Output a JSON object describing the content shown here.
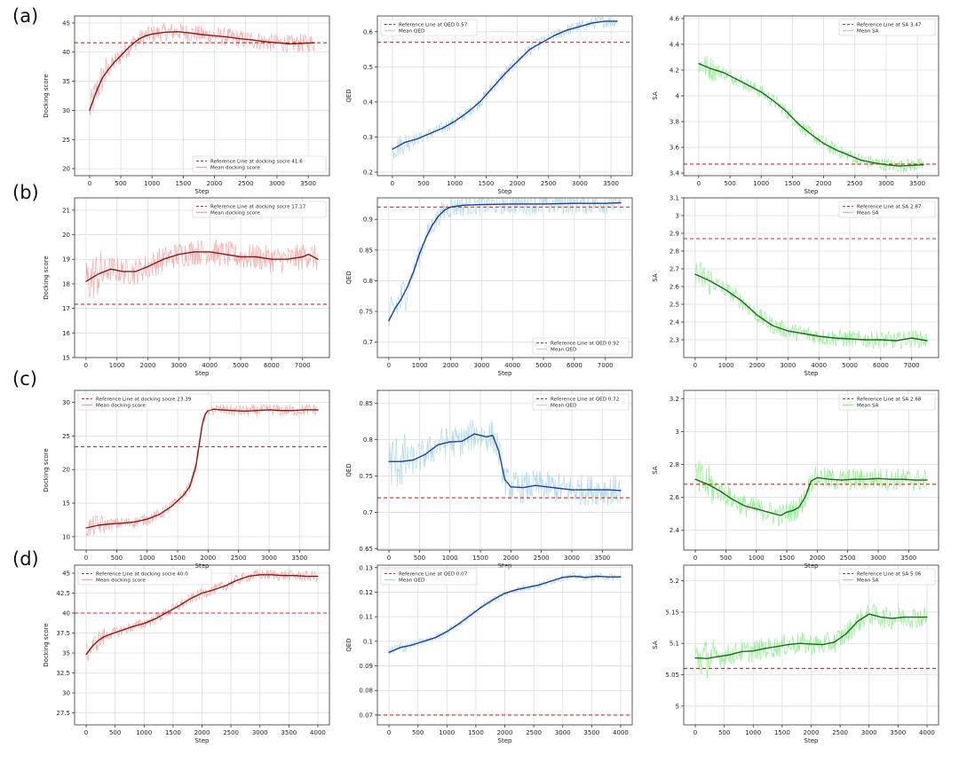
{
  "row_labels": [
    "(a)",
    "(b)",
    "(c)",
    "(d)"
  ],
  "colors": {
    "docking_raw": "#f4a8a8",
    "docking_mean": "#8b1a1a",
    "qed_raw": "#add8e6",
    "qed_mean": "#1f3fa0",
    "sa_raw": "#90ee90",
    "sa_mean": "#1e6b1e",
    "reference": "#e8211b",
    "grid": "#dcdcdc",
    "axes": "#333333"
  },
  "chart_data": [
    {
      "type": "line",
      "row": "(a)",
      "metric": "docking",
      "xlabel": "Step",
      "ylabel": "Docking score",
      "xlim": [
        -240,
        3840
      ],
      "ylim": [
        18.8,
        46.2
      ],
      "xticks": [
        0,
        500,
        1000,
        1500,
        2000,
        2500,
        3000,
        3500
      ],
      "yticks": [
        20,
        25,
        30,
        35,
        40,
        45
      ],
      "reference": {
        "value": 41.6,
        "label": "Reference Line at docking socre 41.6"
      },
      "legend": "bottom-right",
      "legend_mean": "Mean docking score",
      "x_end": 3600,
      "noise": 1.6,
      "series": [
        {
          "name": "Mean docking score",
          "x": [
            0,
            100,
            200,
            300,
            400,
            500,
            600,
            700,
            800,
            900,
            1000,
            1200,
            1400,
            1600,
            1800,
            2000,
            2200,
            2400,
            2600,
            2800,
            3000,
            3200,
            3400,
            3600
          ],
          "y": [
            30,
            33,
            35.5,
            37,
            38.3,
            39.4,
            40.5,
            41.5,
            42.3,
            42.8,
            43.1,
            43.4,
            43.5,
            43.3,
            43,
            42.8,
            42.6,
            42.3,
            42.1,
            41.8,
            41.6,
            41.4,
            41.5,
            41.6
          ]
        }
      ]
    },
    {
      "type": "line",
      "row": "(a)",
      "metric": "qed",
      "xlabel": "Step",
      "ylabel": "QED",
      "xlim": [
        -240,
        3840
      ],
      "ylim": [
        0.19,
        0.645
      ],
      "xticks": [
        0,
        500,
        1000,
        1500,
        2000,
        2500,
        3000,
        3500
      ],
      "yticks": [
        0.2,
        0.3,
        0.4,
        0.5,
        0.6
      ],
      "reference": {
        "value": 0.57,
        "label": "Reference Line at QED  0.57"
      },
      "legend": "top-left",
      "legend_mean": "Mean QED",
      "x_end": 3600,
      "noise": 0.018,
      "series": [
        {
          "name": "Mean QED",
          "x": [
            0,
            200,
            400,
            600,
            800,
            1000,
            1200,
            1400,
            1600,
            1800,
            2000,
            2200,
            2400,
            2600,
            2800,
            3000,
            3200,
            3400,
            3600
          ],
          "y": [
            0.265,
            0.285,
            0.295,
            0.31,
            0.325,
            0.345,
            0.37,
            0.4,
            0.44,
            0.48,
            0.515,
            0.55,
            0.57,
            0.59,
            0.605,
            0.615,
            0.625,
            0.63,
            0.63
          ]
        }
      ]
    },
    {
      "type": "line",
      "row": "(a)",
      "metric": "sa",
      "xlabel": "Step",
      "ylabel": "SA",
      "xlim": [
        -240,
        3840
      ],
      "ylim": [
        3.38,
        4.62
      ],
      "xticks": [
        0,
        500,
        1000,
        1500,
        2000,
        2500,
        3000,
        3500
      ],
      "yticks": [
        3.4,
        3.6,
        3.8,
        4.0,
        4.2,
        4.4,
        4.6
      ],
      "reference": {
        "value": 3.47,
        "label": "Reference Line at SA  3.47"
      },
      "legend": "top-right",
      "legend_mean": "Mean SA",
      "x_end": 3600,
      "noise": 0.055,
      "series": [
        {
          "name": "Mean SA",
          "x": [
            0,
            200,
            400,
            600,
            800,
            1000,
            1200,
            1400,
            1600,
            1800,
            2000,
            2200,
            2400,
            2600,
            2800,
            3000,
            3200,
            3400,
            3600
          ],
          "y": [
            4.25,
            4.21,
            4.18,
            4.13,
            4.08,
            4.03,
            3.96,
            3.88,
            3.78,
            3.7,
            3.63,
            3.58,
            3.54,
            3.5,
            3.48,
            3.465,
            3.455,
            3.46,
            3.465
          ]
        }
      ]
    },
    {
      "type": "line",
      "row": "(b)",
      "metric": "docking",
      "xlabel": "Step",
      "ylabel": "Docking score",
      "xlim": [
        -370,
        7870
      ],
      "ylim": [
        15,
        21.5
      ],
      "xticks": [
        0,
        1000,
        2000,
        3000,
        4000,
        5000,
        6000,
        7000
      ],
      "yticks": [
        15,
        16,
        17,
        18,
        19,
        20,
        21
      ],
      "reference": {
        "value": 17.17,
        "label": "Reference Line at docking socre 17.17"
      },
      "legend": "top-right",
      "legend_mean": "Mean docking score",
      "x_end": 7500,
      "noise": 0.55,
      "series": [
        {
          "name": "Mean docking score",
          "x": [
            0,
            400,
            800,
            1200,
            1600,
            2000,
            2500,
            3000,
            3500,
            4000,
            4500,
            5000,
            5500,
            6000,
            6500,
            7000,
            7200,
            7500
          ],
          "y": [
            18.1,
            18.4,
            18.6,
            18.5,
            18.5,
            18.7,
            19.0,
            19.2,
            19.3,
            19.3,
            19.2,
            19.1,
            19.1,
            19.0,
            19.0,
            19.1,
            19.2,
            19.0
          ]
        }
      ]
    },
    {
      "type": "line",
      "row": "(b)",
      "metric": "qed",
      "xlabel": "Step",
      "ylabel": "QED",
      "xlim": [
        -370,
        7870
      ],
      "ylim": [
        0.675,
        0.935
      ],
      "xticks": [
        0,
        1000,
        2000,
        3000,
        4000,
        5000,
        6000,
        7000
      ],
      "yticks": [
        0.7,
        0.75,
        0.8,
        0.85,
        0.9
      ],
      "reference": {
        "value": 0.92,
        "label": "Reference Line at QED  0.92"
      },
      "legend": "bottom-right",
      "legend_mean": "Mean QED",
      "x_end": 7500,
      "noise": 0.018,
      "series": [
        {
          "name": "Mean QED",
          "x": [
            0,
            200,
            400,
            600,
            800,
            1000,
            1200,
            1400,
            1600,
            1800,
            2000,
            2400,
            3000,
            4000,
            5000,
            6000,
            7000,
            7500
          ],
          "y": [
            0.735,
            0.755,
            0.77,
            0.79,
            0.815,
            0.845,
            0.87,
            0.89,
            0.905,
            0.915,
            0.92,
            0.923,
            0.924,
            0.925,
            0.925,
            0.926,
            0.926,
            0.927
          ]
        }
      ]
    },
    {
      "type": "line",
      "row": "(b)",
      "metric": "sa",
      "xlabel": "Step",
      "ylabel": "SA",
      "xlim": [
        -370,
        7870
      ],
      "ylim": [
        2.2,
        3.1
      ],
      "xticks": [
        0,
        1000,
        2000,
        3000,
        4000,
        5000,
        6000,
        7000
      ],
      "yticks": [
        2.3,
        2.4,
        2.5,
        2.6,
        2.7,
        2.8,
        2.9,
        3.0,
        3.1
      ],
      "reference": {
        "value": 2.87,
        "label": "Reference Line at SA  2.87"
      },
      "legend": "top-right",
      "legend_mean": "Mean SA",
      "x_end": 7500,
      "noise": 0.05,
      "series": [
        {
          "name": "Mean SA",
          "x": [
            0,
            500,
            1000,
            1500,
            2000,
            2500,
            3000,
            3500,
            4000,
            4500,
            5000,
            5500,
            6000,
            6500,
            7000,
            7500
          ],
          "y": [
            2.67,
            2.63,
            2.58,
            2.52,
            2.44,
            2.38,
            2.35,
            2.335,
            2.32,
            2.31,
            2.305,
            2.3,
            2.3,
            2.295,
            2.31,
            2.295
          ]
        }
      ]
    },
    {
      "type": "line",
      "row": "(c)",
      "metric": "docking",
      "xlabel": "Step",
      "ylabel": "Docking score",
      "xlim": [
        -190,
        3990
      ],
      "ylim": [
        8,
        31.8
      ],
      "xticks": [
        0,
        500,
        1000,
        1500,
        2000,
        2500,
        3000,
        3500
      ],
      "yticks": [
        10,
        15,
        20,
        25,
        30
      ],
      "reference": {
        "value": 23.39,
        "label": "Reference Line at docking socre 23.39"
      },
      "legend": "top-left",
      "legend_mean": "Mean docking score",
      "x_end": 3800,
      "noise": 0.9,
      "series": [
        {
          "name": "Mean docking score",
          "x": [
            0,
            200,
            400,
            600,
            800,
            1000,
            1200,
            1400,
            1600,
            1700,
            1800,
            1850,
            1900,
            1950,
            2000,
            2100,
            2200,
            2400,
            2600,
            2800,
            3000,
            3200,
            3400,
            3600,
            3800
          ],
          "y": [
            11.3,
            11.7,
            11.9,
            12.0,
            12.2,
            12.6,
            13.3,
            14.5,
            16.2,
            17.5,
            20.5,
            23.5,
            26.5,
            28.2,
            28.8,
            29.0,
            28.9,
            28.8,
            28.7,
            28.8,
            28.9,
            28.8,
            28.8,
            28.9,
            28.9
          ]
        }
      ]
    },
    {
      "type": "line",
      "row": "(c)",
      "metric": "qed",
      "xlabel": "Step",
      "ylabel": "QED",
      "xlim": [
        -190,
        3990
      ],
      "ylim": [
        0.648,
        0.868
      ],
      "xticks": [
        0,
        500,
        1000,
        1500,
        2000,
        2500,
        3000,
        3500
      ],
      "yticks": [
        0.65,
        0.7,
        0.75,
        0.8,
        0.85
      ],
      "reference": {
        "value": 0.72,
        "label": "Reference Line at QED  0.72"
      },
      "legend": "top-right",
      "legend_mean": "Mean QED",
      "x_end": 3800,
      "noise": 0.022,
      "series": [
        {
          "name": "Mean QED",
          "x": [
            0,
            200,
            400,
            600,
            800,
            1000,
            1200,
            1400,
            1500,
            1600,
            1700,
            1800,
            1900,
            2000,
            2200,
            2400,
            2600,
            2800,
            3000,
            3200,
            3400,
            3600,
            3800
          ],
          "y": [
            0.77,
            0.77,
            0.772,
            0.78,
            0.793,
            0.797,
            0.798,
            0.808,
            0.806,
            0.804,
            0.806,
            0.785,
            0.745,
            0.735,
            0.734,
            0.737,
            0.735,
            0.733,
            0.731,
            0.731,
            0.731,
            0.731,
            0.73
          ]
        }
      ]
    },
    {
      "type": "line",
      "row": "(c)",
      "metric": "sa",
      "xlabel": "Step",
      "ylabel": "SA",
      "xlim": [
        -190,
        3990
      ],
      "ylim": [
        2.28,
        3.25
      ],
      "xticks": [
        0,
        500,
        1000,
        1500,
        2000,
        2500,
        3000,
        3500
      ],
      "yticks": [
        2.4,
        2.6,
        2.8,
        3.0,
        3.2
      ],
      "reference": {
        "value": 2.68,
        "label": "Reference Line at SA  2.68"
      },
      "legend": "top-right",
      "legend_mean": "Mean SA",
      "x_end": 3800,
      "noise": 0.07,
      "series": [
        {
          "name": "Mean SA",
          "x": [
            0,
            200,
            400,
            600,
            800,
            1000,
            1200,
            1400,
            1500,
            1600,
            1700,
            1800,
            1900,
            2000,
            2200,
            2400,
            2600,
            2800,
            3000,
            3200,
            3400,
            3600,
            3800
          ],
          "y": [
            2.71,
            2.68,
            2.64,
            2.59,
            2.55,
            2.53,
            2.51,
            2.49,
            2.51,
            2.52,
            2.54,
            2.6,
            2.7,
            2.72,
            2.71,
            2.705,
            2.71,
            2.71,
            2.715,
            2.71,
            2.71,
            2.705,
            2.705
          ]
        }
      ]
    },
    {
      "type": "line",
      "row": "(d)",
      "metric": "docking",
      "xlabel": "Step",
      "ylabel": "Docking score",
      "xlim": [
        -200,
        4200
      ],
      "ylim": [
        26.0,
        46.0
      ],
      "xticks": [
        0,
        500,
        1000,
        1500,
        2000,
        2500,
        3000,
        3500,
        4000
      ],
      "yticks": [
        27.5,
        30.0,
        32.5,
        35.0,
        37.5,
        40.0,
        42.5,
        45.0
      ],
      "reference": {
        "value": 40.0,
        "label": "Reference Line at docking socre 40.0"
      },
      "legend": "top-left",
      "legend_mean": "Mean docking score",
      "x_end": 4000,
      "noise": 0.7,
      "series": [
        {
          "name": "Mean docking score",
          "x": [
            0,
            100,
            200,
            300,
            400,
            600,
            800,
            1000,
            1200,
            1400,
            1600,
            1800,
            2000,
            2200,
            2400,
            2600,
            2800,
            3000,
            3200,
            3400,
            3600,
            3800,
            4000
          ],
          "y": [
            34.8,
            35.8,
            36.5,
            37.0,
            37.3,
            37.8,
            38.3,
            38.7,
            39.3,
            40.1,
            40.9,
            41.8,
            42.5,
            42.9,
            43.4,
            44.1,
            44.6,
            44.8,
            44.8,
            44.7,
            44.7,
            44.6,
            44.6
          ]
        }
      ]
    },
    {
      "type": "line",
      "row": "(d)",
      "metric": "qed",
      "xlabel": "Step",
      "ylabel": "QED",
      "xlim": [
        -200,
        4200
      ],
      "ylim": [
        0.066,
        0.131
      ],
      "xticks": [
        0,
        500,
        1000,
        1500,
        2000,
        2500,
        3000,
        3500,
        4000
      ],
      "yticks": [
        0.07,
        0.08,
        0.09,
        0.1,
        0.11,
        0.12,
        0.13
      ],
      "reference": {
        "value": 0.07,
        "label": "Reference Line at QED  0.07"
      },
      "legend": "top-left",
      "legend_mean": "Mean QED",
      "x_end": 4000,
      "noise": 0.0015,
      "series": [
        {
          "name": "Mean QED",
          "x": [
            0,
            200,
            400,
            600,
            800,
            1000,
            1200,
            1400,
            1600,
            1800,
            2000,
            2200,
            2400,
            2600,
            2800,
            3000,
            3200,
            3400,
            3600,
            3800,
            4000
          ],
          "y": [
            0.0955,
            0.0975,
            0.0985,
            0.1,
            0.1015,
            0.104,
            0.107,
            0.1105,
            0.114,
            0.117,
            0.1195,
            0.121,
            0.122,
            0.123,
            0.1245,
            0.126,
            0.1265,
            0.126,
            0.1265,
            0.1262,
            0.1262
          ]
        }
      ]
    },
    {
      "type": "line",
      "row": "(d)",
      "metric": "sa",
      "xlabel": "Step",
      "ylabel": "SA",
      "xlim": [
        -200,
        4200
      ],
      "ylim": [
        4.97,
        5.225
      ],
      "xticks": [
        0,
        500,
        1000,
        1500,
        2000,
        2500,
        3000,
        3500,
        4000
      ],
      "yticks": [
        5.0,
        5.05,
        5.1,
        5.15,
        5.2
      ],
      "reference": {
        "value": 5.06,
        "label": "Reference Line at SA  5.06"
      },
      "legend": "top-right",
      "legend_mean": "Mean SA",
      "x_end": 4000,
      "noise": 0.018,
      "series": [
        {
          "name": "Mean SA",
          "x": [
            0,
            200,
            400,
            600,
            800,
            1000,
            1200,
            1400,
            1600,
            1800,
            2000,
            2200,
            2400,
            2600,
            2800,
            3000,
            3200,
            3400,
            3600,
            3800,
            4000
          ],
          "y": [
            5.077,
            5.076,
            5.079,
            5.082,
            5.087,
            5.088,
            5.092,
            5.095,
            5.098,
            5.1,
            5.099,
            5.098,
            5.102,
            5.115,
            5.135,
            5.147,
            5.142,
            5.14,
            5.142,
            5.142,
            5.142
          ]
        }
      ]
    }
  ]
}
